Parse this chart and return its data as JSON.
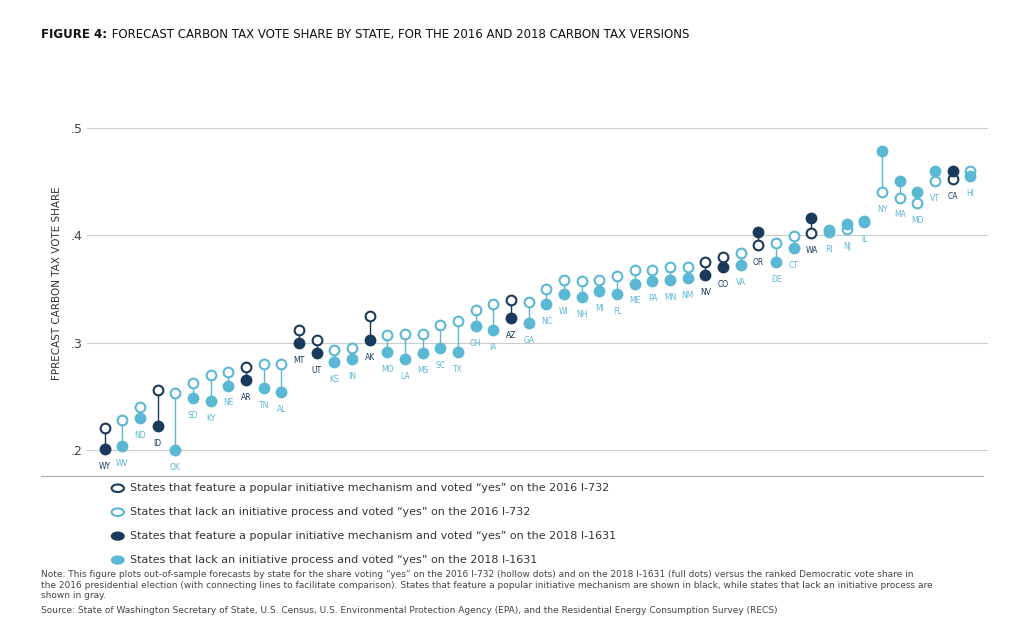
{
  "title_bold": "FIGURE 4:",
  "title_rest": " FORECAST CARBON TAX VOTE SHARE BY STATE, FOR THE 2016 AND 2018 CARBON TAX VERSIONS",
  "ylabel": "FPRECAST CARBON TAX VOTE SHARE",
  "ylim": [
    0.185,
    0.525
  ],
  "yticks": [
    0.2,
    0.3,
    0.4,
    0.5
  ],
  "ytick_labels": [
    ".2",
    ".3",
    ".4",
    ".5"
  ],
  "background_color": "#ffffff",
  "grid_color": "#cccccc",
  "note_text": "Note: This figure plots out-of-sample forecasts by state for the share voting “yes” on the 2016 I-732 (hollow dots) and on the 2018 I-1631 (full dots) versus the ranked Democratic vote share in\nthe 2016 presidential election (with connecting lines to facilitate comparison). States that feature a popular initiative mechanism are shown in black, while states that lack an initiative process are\nshown in gray.",
  "source_text": "Source: State of Washington Secretary of State, U.S. Census, U.S. Environmental Protection Agency (EPA), and the Residential Energy Consumption Survey (RECS)",
  "legend_entries": [
    {
      "label": "States that feature a popular initiative mechanism and voted “yes” on the 2016 I-732",
      "color": "#1a3a5c",
      "filled": false
    },
    {
      "label": "States that lack an initiative process and voted “yes” on the 2016 I-732",
      "color": "#5bb8d4",
      "filled": false
    },
    {
      "label": "States that feature a popular initiative mechanism and voted “yes” on the 2018 I-1631",
      "color": "#1a3a5c",
      "filled": true
    },
    {
      "label": "States that lack an initiative process and voted “yes” on the 2018 I-1631",
      "color": "#5bb8d4",
      "filled": true
    }
  ],
  "states": [
    {
      "abbr": "WY",
      "x": 1,
      "v2016": 0.221,
      "v2018": 0.201,
      "initiative": true
    },
    {
      "abbr": "WV",
      "x": 2,
      "v2016": 0.228,
      "v2018": 0.204,
      "initiative": false
    },
    {
      "abbr": "ND",
      "x": 3,
      "v2016": 0.24,
      "v2018": 0.23,
      "initiative": false
    },
    {
      "abbr": "ID",
      "x": 4,
      "v2016": 0.256,
      "v2018": 0.222,
      "initiative": true
    },
    {
      "abbr": "OK",
      "x": 5,
      "v2016": 0.253,
      "v2018": 0.2,
      "initiative": false
    },
    {
      "abbr": "SD",
      "x": 6,
      "v2016": 0.262,
      "v2018": 0.248,
      "initiative": false
    },
    {
      "abbr": "KY",
      "x": 7,
      "v2016": 0.27,
      "v2018": 0.246,
      "initiative": false
    },
    {
      "abbr": "NE",
      "x": 8,
      "v2016": 0.273,
      "v2018": 0.26,
      "initiative": false
    },
    {
      "abbr": "AR",
      "x": 9,
      "v2016": 0.277,
      "v2018": 0.265,
      "initiative": true
    },
    {
      "abbr": "TN",
      "x": 10,
      "v2016": 0.28,
      "v2018": 0.258,
      "initiative": false
    },
    {
      "abbr": "AL",
      "x": 11,
      "v2016": 0.28,
      "v2018": 0.254,
      "initiative": false
    },
    {
      "abbr": "MT",
      "x": 12,
      "v2016": 0.312,
      "v2018": 0.3,
      "initiative": true
    },
    {
      "abbr": "UT",
      "x": 13,
      "v2016": 0.302,
      "v2018": 0.29,
      "initiative": true
    },
    {
      "abbr": "KS",
      "x": 14,
      "v2016": 0.293,
      "v2018": 0.282,
      "initiative": false
    },
    {
      "abbr": "IN",
      "x": 15,
      "v2016": 0.295,
      "v2018": 0.285,
      "initiative": false
    },
    {
      "abbr": "AK",
      "x": 16,
      "v2016": 0.325,
      "v2018": 0.302,
      "initiative": true
    },
    {
      "abbr": "MO",
      "x": 17,
      "v2016": 0.307,
      "v2018": 0.291,
      "initiative": false
    },
    {
      "abbr": "LA",
      "x": 18,
      "v2016": 0.308,
      "v2018": 0.285,
      "initiative": false
    },
    {
      "abbr": "MS",
      "x": 19,
      "v2016": 0.308,
      "v2018": 0.29,
      "initiative": false
    },
    {
      "abbr": "SC",
      "x": 20,
      "v2016": 0.316,
      "v2018": 0.295,
      "initiative": false
    },
    {
      "abbr": "TX",
      "x": 21,
      "v2016": 0.32,
      "v2018": 0.291,
      "initiative": false
    },
    {
      "abbr": "OH",
      "x": 22,
      "v2016": 0.33,
      "v2018": 0.315,
      "initiative": false
    },
    {
      "abbr": "IA",
      "x": 23,
      "v2016": 0.336,
      "v2018": 0.312,
      "initiative": false
    },
    {
      "abbr": "AZ",
      "x": 24,
      "v2016": 0.34,
      "v2018": 0.323,
      "initiative": true
    },
    {
      "abbr": "GA",
      "x": 25,
      "v2016": 0.338,
      "v2018": 0.318,
      "initiative": false
    },
    {
      "abbr": "NC",
      "x": 26,
      "v2016": 0.35,
      "v2018": 0.336,
      "initiative": false
    },
    {
      "abbr": "WI",
      "x": 27,
      "v2016": 0.358,
      "v2018": 0.345,
      "initiative": false
    },
    {
      "abbr": "NH",
      "x": 28,
      "v2016": 0.357,
      "v2018": 0.342,
      "initiative": false
    },
    {
      "abbr": "MI",
      "x": 29,
      "v2016": 0.358,
      "v2018": 0.348,
      "initiative": false
    },
    {
      "abbr": "FL",
      "x": 30,
      "v2016": 0.362,
      "v2018": 0.345,
      "initiative": false
    },
    {
      "abbr": "ME",
      "x": 31,
      "v2016": 0.368,
      "v2018": 0.355,
      "initiative": false
    },
    {
      "abbr": "PA",
      "x": 32,
      "v2016": 0.368,
      "v2018": 0.357,
      "initiative": false
    },
    {
      "abbr": "MN",
      "x": 33,
      "v2016": 0.37,
      "v2018": 0.358,
      "initiative": false
    },
    {
      "abbr": "NM",
      "x": 34,
      "v2016": 0.37,
      "v2018": 0.36,
      "initiative": false
    },
    {
      "abbr": "NV",
      "x": 35,
      "v2016": 0.375,
      "v2018": 0.363,
      "initiative": true
    },
    {
      "abbr": "CO",
      "x": 36,
      "v2016": 0.38,
      "v2018": 0.37,
      "initiative": true
    },
    {
      "abbr": "VA",
      "x": 37,
      "v2016": 0.383,
      "v2018": 0.372,
      "initiative": false
    },
    {
      "abbr": "OR",
      "x": 38,
      "v2016": 0.391,
      "v2018": 0.403,
      "initiative": true
    },
    {
      "abbr": "DE",
      "x": 39,
      "v2016": 0.393,
      "v2018": 0.375,
      "initiative": false
    },
    {
      "abbr": "CT",
      "x": 40,
      "v2016": 0.399,
      "v2018": 0.388,
      "initiative": false
    },
    {
      "abbr": "WA",
      "x": 41,
      "v2016": 0.402,
      "v2018": 0.416,
      "initiative": true
    },
    {
      "abbr": "RI",
      "x": 42,
      "v2016": 0.403,
      "v2018": 0.405,
      "initiative": false
    },
    {
      "abbr": "NJ",
      "x": 43,
      "v2016": 0.406,
      "v2018": 0.41,
      "initiative": false
    },
    {
      "abbr": "IL",
      "x": 44,
      "v2016": 0.412,
      "v2018": 0.413,
      "initiative": false
    },
    {
      "abbr": "NY",
      "x": 45,
      "v2016": 0.44,
      "v2018": 0.478,
      "initiative": false
    },
    {
      "abbr": "MA",
      "x": 46,
      "v2016": 0.435,
      "v2018": 0.45,
      "initiative": false
    },
    {
      "abbr": "MD",
      "x": 47,
      "v2016": 0.43,
      "v2018": 0.44,
      "initiative": false
    },
    {
      "abbr": "VT",
      "x": 48,
      "v2016": 0.45,
      "v2018": 0.46,
      "initiative": false
    },
    {
      "abbr": "CA",
      "x": 49,
      "v2016": 0.452,
      "v2018": 0.46,
      "initiative": true
    },
    {
      "abbr": "HI",
      "x": 50,
      "v2016": 0.46,
      "v2018": 0.455,
      "initiative": false
    }
  ],
  "color_initiative": "#1a3a5c",
  "color_no_initiative": "#5bb8d4",
  "marker_size_2016": 7,
  "marker_size_2018": 7
}
